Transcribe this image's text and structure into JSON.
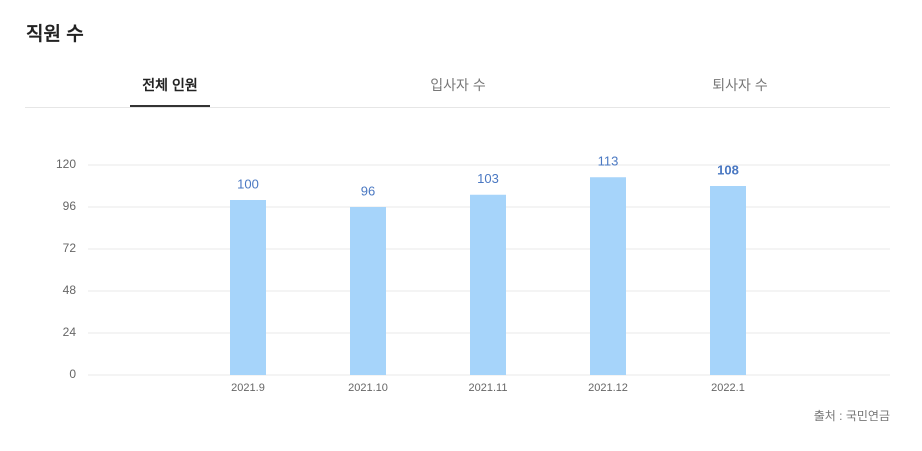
{
  "header": {
    "title": "직원 수"
  },
  "tabs": [
    "전체 인원",
    "입사자 수",
    "퇴사자 수"
  ],
  "chart_data": {
    "type": "bar",
    "categories": [
      "2021.9",
      "2021.10",
      "2021.11",
      "2021.12",
      "2022.1"
    ],
    "values": [
      100,
      96,
      103,
      113,
      108
    ],
    "color": "#a6d4fa",
    "ylim": [
      0,
      120
    ],
    "yticks": [
      0,
      24,
      48,
      72,
      96,
      120
    ],
    "grid": true
  },
  "source": "출처 : 국민연금"
}
